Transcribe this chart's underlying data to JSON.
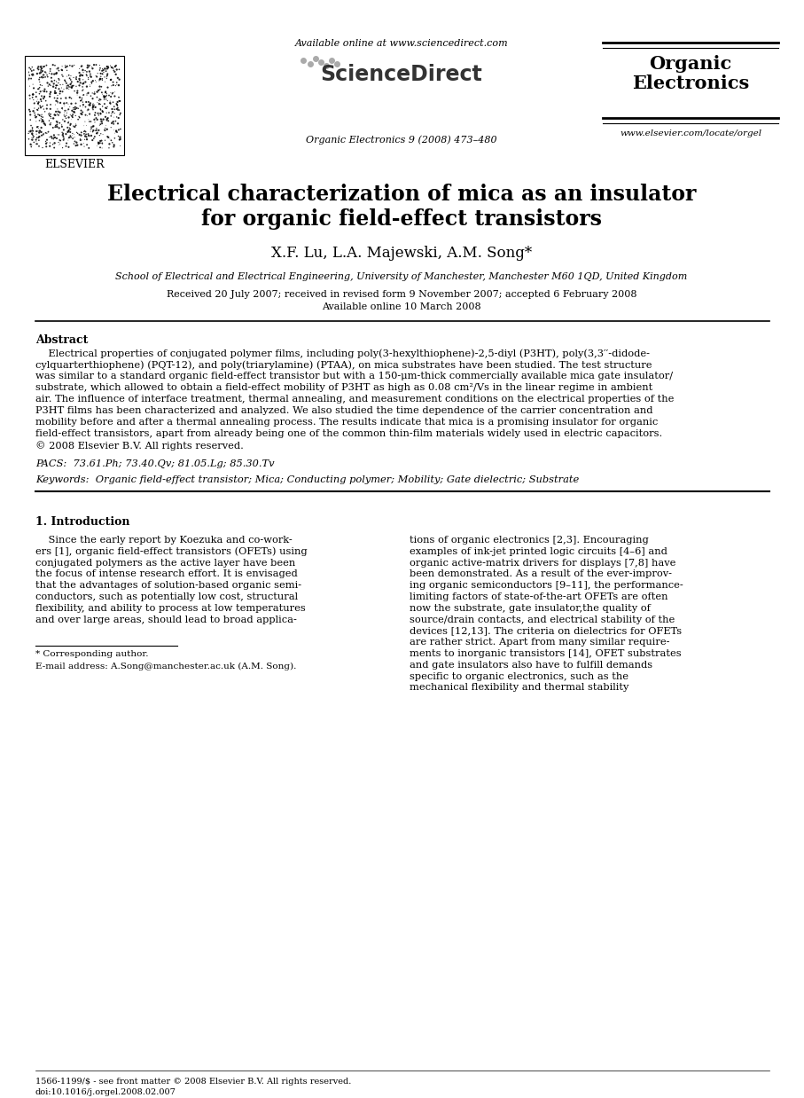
{
  "bg_color": "#ffffff",
  "title_line1": "Electrical characterization of mica as an insulator",
  "title_line2": "for organic field-effect transistors",
  "authors": "X.F. Lu, L.A. Majewski, A.M. Song*",
  "affiliation": "School of Electrical and Electrical Engineering, University of Manchester, Manchester M60 1QD, United Kingdom",
  "dates": "Received 20 July 2007; received in revised form 9 November 2007; accepted 6 February 2008",
  "available": "Available online 10 March 2008",
  "journal_top": "Available online at www.sciencedirect.com",
  "journal_name": "ScienceDirect",
  "journal_ref": "Organic Electronics 9 (2008) 473–480",
  "journal_title_line1": "Organic",
  "journal_title_line2": "Electronics",
  "website": "www.elsevier.com/locate/orgel",
  "elsevier": "ELSEVIER",
  "abstract_title": "Abstract",
  "pacs": "PACS:  73.61.Ph; 73.40.Qv; 81.05.Lg; 85.30.Tv",
  "keywords": "Keywords:  Organic field-effect transistor; Mica; Conducting polymer; Mobility; Gate dielectric; Substrate",
  "section1_title": "1. Introduction",
  "footnote_star": "* Corresponding author.",
  "footnote_email": "E-mail address: A.Song@manchester.ac.uk (A.M. Song).",
  "footer_left": "1566-1199/$ - see front matter © 2008 Elsevier B.V. All rights reserved.",
  "footer_doi": "doi:10.1016/j.orgel.2008.02.007",
  "abstract_lines": [
    "    Electrical properties of conjugated polymer films, including poly(3-hexylthiophene)-2,5-diyl (P3HT), poly(3,3′′-didode-",
    "cylquarterthiophene) (PQT-12), and poly(triarylamine) (PTAA), on mica substrates have been studied. The test structure",
    "was similar to a standard organic field-effect transistor but with a 150-μm-thick commercially available mica gate insulator/",
    "substrate, which allowed to obtain a field-effect mobility of P3HT as high as 0.08 cm²/Vs in the linear regime in ambient",
    "air. The influence of interface treatment, thermal annealing, and measurement conditions on the electrical properties of the",
    "P3HT films has been characterized and analyzed. We also studied the time dependence of the carrier concentration and",
    "mobility before and after a thermal annealing process. The results indicate that mica is a promising insulator for organic",
    "field-effect transistors, apart from already being one of the common thin-film materials widely used in electric capacitors.",
    "© 2008 Elsevier B.V. All rights reserved."
  ],
  "intro_left_lines": [
    "    Since the early report by Koezuka and co-work-",
    "ers [1], organic field-effect transistors (OFETs) using",
    "conjugated polymers as the active layer have been",
    "the focus of intense research effort. It is envisaged",
    "that the advantages of solution-based organic semi-",
    "conductors, such as potentially low cost, structural",
    "flexibility, and ability to process at low temperatures",
    "and over large areas, should lead to broad applica-"
  ],
  "intro_right_lines": [
    "tions of organic electronics [2,3]. Encouraging",
    "examples of ink-jet printed logic circuits [4–6] and",
    "organic active-matrix drivers for displays [7,8] have",
    "been demonstrated. As a result of the ever-improv-",
    "ing organic semiconductors [9–11], the performance-",
    "limiting factors of state-of-the-art OFETs are often",
    "now the substrate, gate insulator,the quality of",
    "source/drain contacts, and electrical stability of the",
    "devices [12,13]. The criteria on dielectrics for OFETs",
    "are rather strict. Apart from many similar require-",
    "ments to inorganic transistors [14], OFET substrates",
    "and gate insulators also have to fulfill demands",
    "specific to organic electronics, such as the",
    "mechanical flexibility and thermal stability"
  ]
}
